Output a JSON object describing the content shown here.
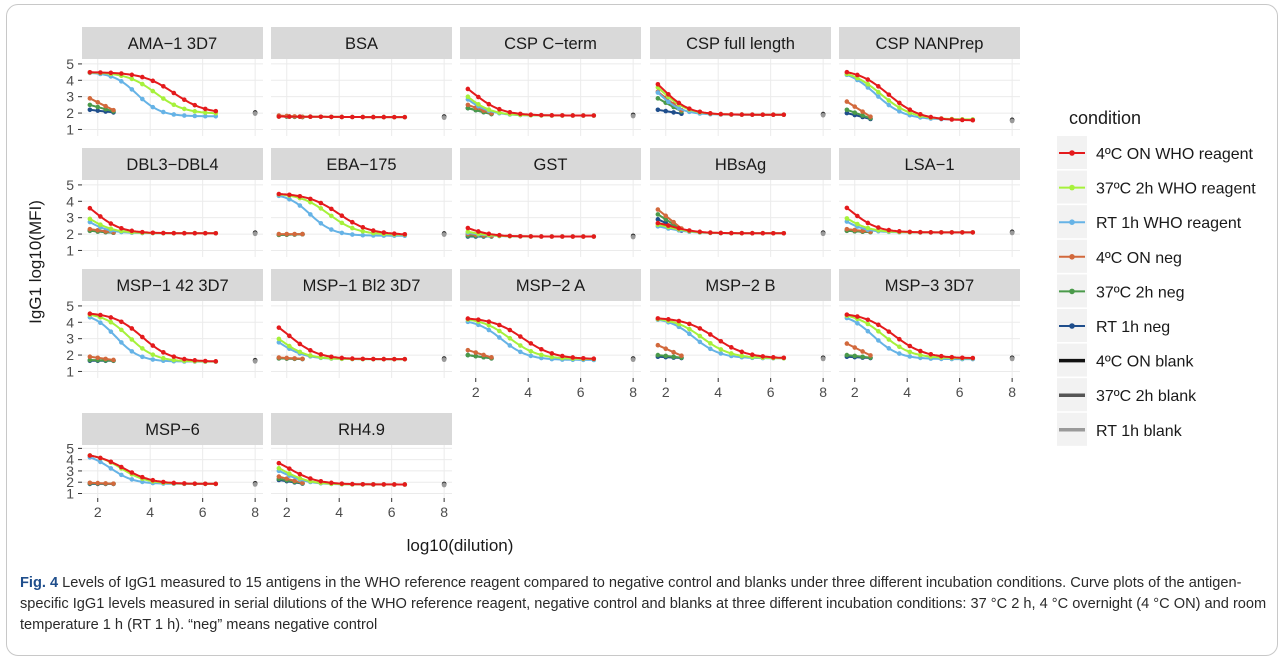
{
  "figure": {
    "caption_label": "Fig. 4",
    "caption_text": "Levels of IgG1 measured to 15 antigens in the WHO reference reagent compared to negative control and blanks under three different incubation conditions. Curve plots of the antigen-specific IgG1 levels measured in serial dilutions of the WHO reference reagent, negative control and blanks at three different incubation conditions: 37 °C 2 h, 4 °C overnight (4 °C ON) and room temperature 1 h (RT 1 h). “neg” means negative control"
  },
  "chart_data": {
    "type": "line",
    "xlabel": "log10(dilution)",
    "ylabel": "IgG1 log10(MFI)",
    "xlim": [
      1.4,
      8.3
    ],
    "ylim": [
      0.6,
      5.3
    ],
    "x_ticks": [
      2,
      4,
      6,
      8
    ],
    "y_ticks": [
      1,
      2,
      3,
      4,
      5
    ],
    "grid": true,
    "legend_position": "right",
    "legend_title": "condition",
    "series_styles": [
      {
        "name": "4ºC ON WHO reagent",
        "color": "#e41a1c"
      },
      {
        "name": "37ºC 2h WHO reagent",
        "color": "#a6f13b"
      },
      {
        "name": "RT 1h WHO reagent",
        "color": "#66b3e6"
      },
      {
        "name": "4ºC ON neg",
        "color": "#d2693c"
      },
      {
        "name": "37ºC 2h neg",
        "color": "#4a9a4a"
      },
      {
        "name": "RT 1h neg",
        "color": "#1f4e8c"
      },
      {
        "name": "4ºC ON blank",
        "color": "#111111"
      },
      {
        "name": "37ºC 2h blank",
        "color": "#555555"
      },
      {
        "name": "RT 1h blank",
        "color": "#9a9a9a"
      }
    ],
    "dilution_points": [
      1.7,
      2.1,
      2.5,
      2.9,
      3.3,
      3.7,
      4.1,
      4.5,
      4.9,
      5.3,
      5.7,
      6.1,
      6.5
    ],
    "neg_points": [
      1.7,
      2.0,
      2.3,
      2.6
    ],
    "blank_x": 8,
    "panels": [
      {
        "title": "AMA−1 3D7",
        "show_x_axis": false,
        "who": [
          {
            "top": 4.5,
            "bottom": 1.95,
            "mid": 4.9,
            "slope": 0.6
          },
          {
            "top": 4.5,
            "bottom": 1.95,
            "mid": 4.2,
            "slope": 0.55
          },
          {
            "top": 4.5,
            "bottom": 1.8,
            "mid": 3.5,
            "slope": 0.45
          }
        ],
        "neg": [
          2.9,
          2.5,
          2.2
        ],
        "blank": 2.0
      },
      {
        "title": "BSA",
        "show_x_axis": false,
        "who": [
          {
            "top": 1.8,
            "bottom": 1.75,
            "mid": 3,
            "slope": 1
          },
          {
            "top": 1.8,
            "bottom": 1.75,
            "mid": 3,
            "slope": 1
          },
          {
            "top": 1.8,
            "bottom": 1.75,
            "mid": 3,
            "slope": 1
          }
        ],
        "neg": [
          1.85,
          1.8,
          1.8
        ],
        "blank": 1.75
      },
      {
        "title": "CSP C−term",
        "show_x_axis": false,
        "who": [
          {
            "top": 4.6,
            "bottom": 1.85,
            "mid": 1.9,
            "slope": 0.55
          },
          {
            "top": 4.4,
            "bottom": 1.85,
            "mid": 1.6,
            "slope": 0.5
          },
          {
            "top": 4.3,
            "bottom": 1.85,
            "mid": 1.5,
            "slope": 0.5
          }
        ],
        "neg": [
          2.5,
          2.3,
          2.3
        ],
        "blank": 1.85
      },
      {
        "title": "CSP full length",
        "show_x_axis": false,
        "who": [
          {
            "top": 5.0,
            "bottom": 1.9,
            "mid": 1.9,
            "slope": 0.5
          },
          {
            "top": 4.8,
            "bottom": 1.9,
            "mid": 1.85,
            "slope": 0.5
          },
          {
            "top": 4.6,
            "bottom": 1.9,
            "mid": 1.7,
            "slope": 0.45
          }
        ],
        "neg": [
          3.3,
          2.9,
          2.2
        ],
        "blank": 1.9
      },
      {
        "title": "CSP NANPrep",
        "show_x_axis": false,
        "who": [
          {
            "top": 4.7,
            "bottom": 1.55,
            "mid": 3.3,
            "slope": 0.6
          },
          {
            "top": 4.7,
            "bottom": 1.6,
            "mid": 3.0,
            "slope": 0.6
          },
          {
            "top": 4.7,
            "bottom": 1.6,
            "mid": 2.8,
            "slope": 0.55
          }
        ],
        "neg": [
          2.7,
          2.2,
          2.0
        ],
        "blank": 1.55
      },
      {
        "title": "DBL3−DBL4",
        "show_x_axis": false,
        "who": [
          {
            "top": 4.6,
            "bottom": 2.05,
            "mid": 1.9,
            "slope": 0.5
          },
          {
            "top": 4.0,
            "bottom": 2.05,
            "mid": 1.6,
            "slope": 0.5
          },
          {
            "top": 3.8,
            "bottom": 2.05,
            "mid": 1.5,
            "slope": 0.45
          }
        ],
        "neg": [
          2.3,
          2.2,
          2.2
        ],
        "blank": 2.05
      },
      {
        "title": "EBA−175",
        "show_x_axis": false,
        "who": [
          {
            "top": 4.5,
            "bottom": 1.95,
            "mid": 4.0,
            "slope": 0.6
          },
          {
            "top": 4.5,
            "bottom": 1.95,
            "mid": 3.6,
            "slope": 0.55
          },
          {
            "top": 4.5,
            "bottom": 1.9,
            "mid": 2.9,
            "slope": 0.45
          }
        ],
        "neg": [
          2.0,
          1.95,
          1.95
        ],
        "blank": 2.0
      },
      {
        "title": "GST",
        "show_x_axis": false,
        "who": [
          {
            "top": 3.0,
            "bottom": 1.85,
            "mid": 1.6,
            "slope": 0.5
          },
          {
            "top": 2.6,
            "bottom": 1.85,
            "mid": 1.5,
            "slope": 0.5
          },
          {
            "top": 2.5,
            "bottom": 1.85,
            "mid": 1.4,
            "slope": 0.5
          }
        ],
        "neg": [
          2.0,
          1.9,
          1.85
        ],
        "blank": 1.85
      },
      {
        "title": "HBsAg",
        "show_x_axis": false,
        "who": [
          {
            "top": 2.9,
            "bottom": 2.05,
            "mid": 2.2,
            "slope": 0.5
          },
          {
            "top": 2.8,
            "bottom": 2.05,
            "mid": 2.1,
            "slope": 0.5
          },
          {
            "top": 2.7,
            "bottom": 2.05,
            "mid": 2.0,
            "slope": 0.5
          }
        ],
        "neg": [
          3.5,
          3.2,
          2.9
        ],
        "blank": 2.05
      },
      {
        "title": "LSA−1",
        "show_x_axis": false,
        "who": [
          {
            "top": 4.6,
            "bottom": 2.1,
            "mid": 1.9,
            "slope": 0.5
          },
          {
            "top": 4.0,
            "bottom": 2.1,
            "mid": 1.6,
            "slope": 0.5
          },
          {
            "top": 3.8,
            "bottom": 2.1,
            "mid": 1.5,
            "slope": 0.45
          }
        ],
        "neg": [
          2.3,
          2.2,
          2.2
        ],
        "blank": 2.1
      },
      {
        "title": "MSP−1 42 3D7",
        "show_x_axis": false,
        "who": [
          {
            "top": 4.6,
            "bottom": 1.6,
            "mid": 3.7,
            "slope": 0.55
          },
          {
            "top": 4.6,
            "bottom": 1.6,
            "mid": 3.2,
            "slope": 0.5
          },
          {
            "top": 4.6,
            "bottom": 1.6,
            "mid": 2.7,
            "slope": 0.45
          }
        ],
        "neg": [
          1.9,
          1.7,
          1.65
        ],
        "blank": 1.65
      },
      {
        "title": "MSP−1 Bl2 3D7",
        "show_x_axis": false,
        "who": [
          {
            "top": 4.6,
            "bottom": 1.75,
            "mid": 2.1,
            "slope": 0.55
          },
          {
            "top": 4.0,
            "bottom": 1.75,
            "mid": 1.8,
            "slope": 0.5
          },
          {
            "top": 3.8,
            "bottom": 1.75,
            "mid": 1.7,
            "slope": 0.5
          }
        ],
        "neg": [
          1.85,
          1.8,
          1.8
        ],
        "blank": 1.75
      },
      {
        "title": "MSP−2 A",
        "show_x_axis": true,
        "who": [
          {
            "top": 4.3,
            "bottom": 1.75,
            "mid": 3.8,
            "slope": 0.6
          },
          {
            "top": 4.3,
            "bottom": 1.75,
            "mid": 3.3,
            "slope": 0.55
          },
          {
            "top": 4.2,
            "bottom": 1.7,
            "mid": 3.0,
            "slope": 0.5
          }
        ],
        "neg": [
          2.3,
          2.0,
          2.0
        ],
        "blank": 1.75
      },
      {
        "title": "MSP−2 B",
        "show_x_axis": true,
        "who": [
          {
            "top": 4.3,
            "bottom": 1.8,
            "mid": 3.9,
            "slope": 0.6
          },
          {
            "top": 4.3,
            "bottom": 1.8,
            "mid": 3.4,
            "slope": 0.55
          },
          {
            "top": 4.3,
            "bottom": 1.8,
            "mid": 3.1,
            "slope": 0.5
          }
        ],
        "neg": [
          2.6,
          2.0,
          1.9
        ],
        "blank": 1.8
      },
      {
        "title": "MSP−3 3D7",
        "show_x_axis": true,
        "who": [
          {
            "top": 4.6,
            "bottom": 1.8,
            "mid": 3.5,
            "slope": 0.6
          },
          {
            "top": 4.6,
            "bottom": 1.8,
            "mid": 3.1,
            "slope": 0.55
          },
          {
            "top": 4.6,
            "bottom": 1.75,
            "mid": 2.7,
            "slope": 0.5
          }
        ],
        "neg": [
          2.7,
          2.0,
          1.9
        ],
        "blank": 1.8
      },
      {
        "title": "MSP−6",
        "show_x_axis": true,
        "who": [
          {
            "top": 4.6,
            "bottom": 1.85,
            "mid": 3.0,
            "slope": 0.55
          },
          {
            "top": 4.6,
            "bottom": 1.85,
            "mid": 2.9,
            "slope": 0.5
          },
          {
            "top": 4.6,
            "bottom": 1.85,
            "mid": 2.5,
            "slope": 0.45
          }
        ],
        "neg": [
          1.95,
          1.9,
          1.85
        ],
        "blank": 1.85
      },
      {
        "title": "RH4.9",
        "show_x_axis": true,
        "who": [
          {
            "top": 4.6,
            "bottom": 1.8,
            "mid": 2.1,
            "slope": 0.55
          },
          {
            "top": 4.2,
            "bottom": 1.8,
            "mid": 1.9,
            "slope": 0.5
          },
          {
            "top": 4.0,
            "bottom": 1.8,
            "mid": 1.8,
            "slope": 0.5
          }
        ],
        "neg": [
          2.5,
          2.3,
          2.2
        ],
        "blank": 1.8
      }
    ]
  }
}
